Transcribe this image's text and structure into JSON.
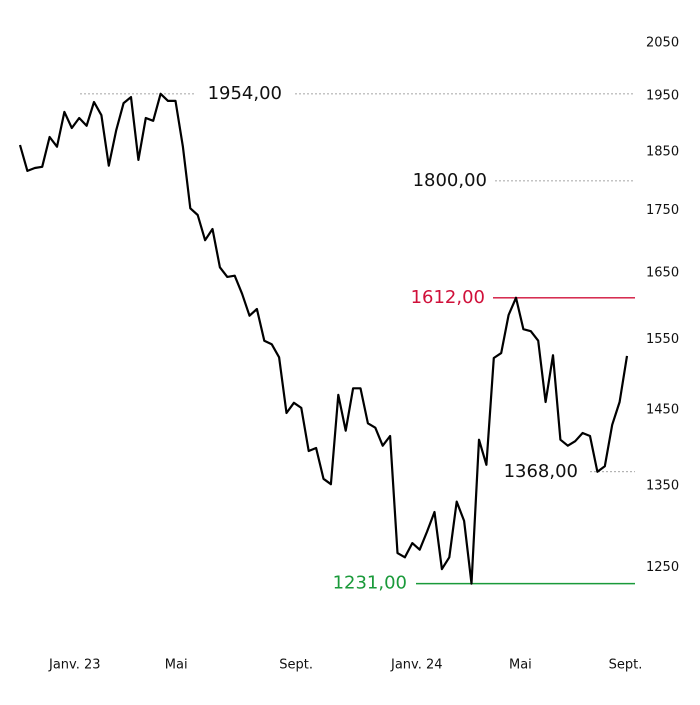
{
  "chart_data": {
    "type": "line",
    "log_scale": true,
    "color": "#000000",
    "values": [
      1862,
      1817,
      1822,
      1824,
      1876,
      1859,
      1921,
      1892,
      1910,
      1896,
      1939,
      1915,
      1826,
      1888,
      1937,
      1948,
      1836,
      1910,
      1905,
      1954,
      1941,
      1941,
      1859,
      1754,
      1743,
      1702,
      1720,
      1659,
      1644,
      1646,
      1618,
      1585,
      1595,
      1548,
      1543,
      1524,
      1446,
      1460,
      1453,
      1395,
      1399,
      1359,
      1352,
      1471,
      1422,
      1480,
      1480,
      1432,
      1426,
      1402,
      1415,
      1267,
      1262,
      1279,
      1271,
      1293,
      1317,
      1248,
      1262,
      1330,
      1306,
      1231,
      1410,
      1377,
      1523,
      1530,
      1586,
      1612,
      1565,
      1562,
      1548,
      1461,
      1527,
      1410,
      1402,
      1408,
      1419,
      1415,
      1368,
      1375,
      1430,
      1461,
      1526
    ],
    "xlim": [
      0,
      82
    ],
    "xticks": [
      {
        "value": 7.4,
        "label": "Janv. 23"
      },
      {
        "value": 21.1,
        "label": "Mai"
      },
      {
        "value": 37.3,
        "label": "Sept."
      },
      {
        "value": 53.6,
        "label": "Janv. 24"
      },
      {
        "value": 67.6,
        "label": "Mai"
      },
      {
        "value": 81.8,
        "label": "Sept."
      }
    ],
    "ylim": [
      1150,
      2100
    ],
    "yticks": [
      2050,
      1950,
      1850,
      1750,
      1650,
      1550,
      1450,
      1350,
      1250
    ],
    "annotations": [
      {
        "value": 1954,
        "label": "1954,00",
        "color": "#111111",
        "style": "dashed"
      },
      {
        "value": 1800,
        "label": "1800,00",
        "color": "#111111",
        "style": "dashed"
      },
      {
        "value": 1612,
        "label": "1612,00",
        "color": "#d0103a",
        "style": "solid"
      },
      {
        "value": 1368,
        "label": "1368,00",
        "color": "#111111",
        "style": "dashed"
      },
      {
        "value": 1231,
        "label": "1231,00",
        "color": "#1a9a3a",
        "style": "solid"
      }
    ]
  }
}
